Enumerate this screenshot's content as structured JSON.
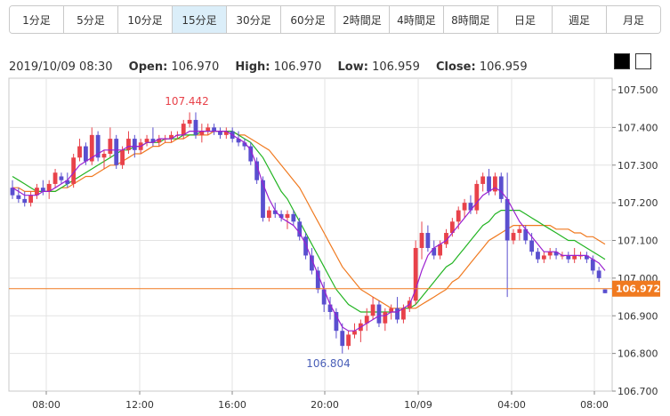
{
  "tabs": [
    {
      "label": "1分足"
    },
    {
      "label": "5分足"
    },
    {
      "label": "10分足"
    },
    {
      "label": "15分足",
      "active": true
    },
    {
      "label": "30分足"
    },
    {
      "label": "60分足"
    },
    {
      "label": "2時間足"
    },
    {
      "label": "4時間足"
    },
    {
      "label": "8時間足"
    },
    {
      "label": "日足"
    },
    {
      "label": "週足"
    },
    {
      "label": "月足"
    }
  ],
  "ohlc": {
    "datetime": "2019/10/09 08:30",
    "open_label": "Open:",
    "open": "106.970",
    "high_label": "High:",
    "high": "106.970",
    "low_label": "Low:",
    "low": "106.959",
    "close_label": "Close:",
    "close": "106.959"
  },
  "chart_data": {
    "type": "candlestick",
    "y_ticks": [
      "107.500",
      "107.400",
      "107.300",
      "107.200",
      "107.100",
      "107.000",
      "106.900",
      "106.800",
      "106.700"
    ],
    "ylim": [
      106.7,
      107.5
    ],
    "x_ticks": [
      "08:00",
      "12:00",
      "16:00",
      "20:00",
      "10/09",
      "04:00",
      "08:00"
    ],
    "current_price": "106.972",
    "annotations": {
      "high": "107.442",
      "low": "106.804"
    },
    "colors": {
      "up": "#e8424a",
      "down": "#5a4fcf",
      "ma_short": "#9a1fd0",
      "ma_mid": "#22b422",
      "ma_long": "#f07a20",
      "price_line": "#f07a20"
    },
    "ohlc": [
      [
        107.24,
        107.26,
        107.21,
        107.22
      ],
      [
        107.22,
        107.24,
        107.2,
        107.21
      ],
      [
        107.21,
        107.23,
        107.19,
        107.2
      ],
      [
        107.2,
        107.23,
        107.19,
        107.22
      ],
      [
        107.22,
        107.25,
        107.21,
        107.24
      ],
      [
        107.24,
        107.26,
        107.22,
        107.23
      ],
      [
        107.23,
        107.26,
        107.21,
        107.25
      ],
      [
        107.25,
        107.29,
        107.24,
        107.28
      ],
      [
        107.27,
        107.28,
        107.25,
        107.26
      ],
      [
        107.26,
        107.28,
        107.24,
        107.25
      ],
      [
        107.25,
        107.33,
        107.24,
        107.32
      ],
      [
        107.32,
        107.37,
        107.31,
        107.35
      ],
      [
        107.35,
        107.36,
        107.3,
        107.31
      ],
      [
        107.31,
        107.4,
        107.3,
        107.38
      ],
      [
        107.38,
        107.39,
        107.31,
        107.32
      ],
      [
        107.32,
        107.34,
        107.29,
        107.33
      ],
      [
        107.33,
        107.4,
        107.32,
        107.37
      ],
      [
        107.37,
        107.38,
        107.29,
        107.3
      ],
      [
        107.3,
        107.35,
        107.29,
        107.34
      ],
      [
        107.34,
        107.39,
        107.33,
        107.37
      ],
      [
        107.37,
        107.38,
        107.32,
        107.34
      ],
      [
        107.34,
        107.37,
        107.33,
        107.36
      ],
      [
        107.36,
        107.38,
        107.35,
        107.37
      ],
      [
        107.37,
        107.4,
        107.35,
        107.36
      ],
      [
        107.36,
        107.38,
        107.35,
        107.37
      ],
      [
        107.37,
        107.38,
        107.36,
        107.37
      ],
      [
        107.37,
        107.39,
        107.36,
        107.38
      ],
      [
        107.38,
        107.39,
        107.37,
        107.38
      ],
      [
        107.38,
        107.42,
        107.37,
        107.41
      ],
      [
        107.41,
        107.44,
        107.4,
        107.42
      ],
      [
        107.42,
        107.44,
        107.37,
        107.38
      ],
      [
        107.38,
        107.41,
        107.36,
        107.39
      ],
      [
        107.39,
        107.41,
        107.38,
        107.4
      ],
      [
        107.4,
        107.41,
        107.38,
        107.39
      ],
      [
        107.39,
        107.4,
        107.37,
        107.38
      ],
      [
        107.38,
        107.4,
        107.37,
        107.39
      ],
      [
        107.39,
        107.4,
        107.36,
        107.37
      ],
      [
        107.37,
        107.39,
        107.35,
        107.36
      ],
      [
        107.36,
        107.37,
        107.34,
        107.35
      ],
      [
        107.35,
        107.36,
        107.3,
        107.31
      ],
      [
        107.31,
        107.32,
        107.25,
        107.26
      ],
      [
        107.26,
        107.27,
        107.15,
        107.16
      ],
      [
        107.16,
        107.19,
        107.15,
        107.18
      ],
      [
        107.18,
        107.2,
        107.16,
        107.17
      ],
      [
        107.17,
        107.18,
        107.15,
        107.16
      ],
      [
        107.16,
        107.18,
        107.13,
        107.17
      ],
      [
        107.17,
        107.18,
        107.14,
        107.15
      ],
      [
        107.15,
        107.16,
        107.1,
        107.11
      ],
      [
        107.11,
        107.12,
        107.05,
        107.06
      ],
      [
        107.06,
        107.08,
        107.01,
        107.02
      ],
      [
        107.02,
        107.03,
        106.96,
        106.97
      ],
      [
        106.97,
        106.99,
        106.91,
        106.93
      ],
      [
        106.93,
        106.95,
        106.89,
        106.91
      ],
      [
        106.91,
        106.92,
        106.84,
        106.86
      ],
      [
        106.86,
        106.88,
        106.8,
        106.82
      ],
      [
        106.82,
        106.86,
        106.81,
        106.85
      ],
      [
        106.85,
        106.88,
        106.84,
        106.86
      ],
      [
        106.86,
        106.89,
        106.83,
        106.88
      ],
      [
        106.88,
        106.92,
        106.86,
        106.9
      ],
      [
        106.9,
        106.95,
        106.89,
        106.93
      ],
      [
        106.93,
        106.94,
        106.87,
        106.88
      ],
      [
        106.88,
        106.92,
        106.86,
        106.91
      ],
      [
        106.91,
        106.93,
        106.89,
        106.92
      ],
      [
        106.92,
        106.95,
        106.88,
        106.89
      ],
      [
        106.89,
        106.93,
        106.88,
        106.92
      ],
      [
        106.92,
        106.95,
        106.91,
        106.94
      ],
      [
        106.94,
        107.1,
        106.93,
        107.08
      ],
      [
        107.08,
        107.15,
        107.05,
        107.12
      ],
      [
        107.12,
        107.14,
        107.07,
        107.08
      ],
      [
        107.08,
        107.1,
        107.05,
        107.06
      ],
      [
        107.06,
        107.1,
        107.05,
        107.09
      ],
      [
        107.09,
        107.13,
        107.08,
        107.12
      ],
      [
        107.12,
        107.16,
        107.11,
        107.15
      ],
      [
        107.15,
        107.19,
        107.13,
        107.18
      ],
      [
        107.18,
        107.21,
        107.16,
        107.2
      ],
      [
        107.2,
        107.22,
        107.17,
        107.18
      ],
      [
        107.18,
        107.26,
        107.17,
        107.25
      ],
      [
        107.25,
        107.28,
        107.23,
        107.27
      ],
      [
        107.27,
        107.29,
        107.22,
        107.23
      ],
      [
        107.23,
        107.28,
        107.22,
        107.27
      ],
      [
        107.27,
        107.28,
        107.2,
        107.21
      ],
      [
        107.21,
        107.28,
        106.95,
        107.1
      ],
      [
        107.1,
        107.13,
        107.09,
        107.12
      ],
      [
        107.12,
        107.14,
        107.1,
        107.13
      ],
      [
        107.13,
        107.14,
        107.09,
        107.1
      ],
      [
        107.1,
        107.12,
        107.06,
        107.07
      ],
      [
        107.07,
        107.08,
        107.04,
        107.05
      ],
      [
        107.05,
        107.07,
        107.04,
        107.06
      ],
      [
        107.06,
        107.08,
        107.05,
        107.07
      ],
      [
        107.07,
        107.08,
        107.05,
        107.06
      ],
      [
        107.06,
        107.07,
        107.05,
        107.06
      ],
      [
        107.06,
        107.07,
        107.04,
        107.05
      ],
      [
        107.05,
        107.08,
        107.04,
        107.06
      ],
      [
        107.06,
        107.07,
        107.05,
        107.06
      ],
      [
        107.06,
        107.07,
        107.04,
        107.05
      ],
      [
        107.05,
        107.06,
        107.01,
        107.02
      ],
      [
        107.02,
        107.03,
        106.99,
        107.0
      ],
      [
        106.97,
        106.97,
        106.96,
        106.96
      ]
    ],
    "ma_short": [
      107.24,
      107.23,
      107.22,
      107.22,
      107.22,
      107.23,
      107.23,
      107.24,
      107.25,
      107.26,
      107.28,
      107.3,
      107.31,
      107.32,
      107.33,
      107.34,
      107.34,
      107.34,
      107.34,
      107.35,
      107.35,
      107.35,
      107.36,
      107.36,
      107.37,
      107.37,
      107.37,
      107.38,
      107.38,
      107.39,
      107.39,
      107.39,
      107.39,
      107.39,
      107.39,
      107.39,
      107.38,
      107.37,
      107.36,
      107.34,
      107.3,
      107.25,
      107.21,
      107.18,
      107.16,
      107.15,
      107.14,
      107.12,
      107.09,
      107.05,
      107.01,
      106.97,
      106.93,
      106.9,
      106.87,
      106.86,
      106.86,
      106.87,
      106.88,
      106.89,
      106.9,
      106.9,
      106.91,
      106.91,
      106.92,
      106.93,
      106.97,
      107.02,
      107.06,
      107.08,
      107.09,
      107.1,
      107.12,
      107.14,
      107.16,
      107.18,
      107.2,
      107.22,
      107.23,
      107.24,
      107.23,
      107.21,
      107.18,
      107.15,
      107.13,
      107.11,
      107.09,
      107.07,
      107.07,
      107.07,
      107.06,
      107.06,
      107.06,
      107.06,
      107.06,
      107.05,
      107.04,
      107.02
    ],
    "ma_mid": [
      107.27,
      107.26,
      107.25,
      107.24,
      107.23,
      107.23,
      107.23,
      107.23,
      107.24,
      107.25,
      107.26,
      107.27,
      107.28,
      107.29,
      107.3,
      107.31,
      107.32,
      107.33,
      107.34,
      107.34,
      107.35,
      107.35,
      107.36,
      107.36,
      107.36,
      107.37,
      107.37,
      107.37,
      107.38,
      107.38,
      107.38,
      107.39,
      107.39,
      107.39,
      107.39,
      107.39,
      107.39,
      107.38,
      107.37,
      107.36,
      107.34,
      107.32,
      107.29,
      107.26,
      107.23,
      107.21,
      107.18,
      107.15,
      107.12,
      107.09,
      107.06,
      107.03,
      107.0,
      106.97,
      106.95,
      106.93,
      106.92,
      106.91,
      106.91,
      106.91,
      106.91,
      106.91,
      106.91,
      106.91,
      106.92,
      106.92,
      106.93,
      106.95,
      106.97,
      106.99,
      107.01,
      107.03,
      107.04,
      107.06,
      107.08,
      107.1,
      107.12,
      107.14,
      107.15,
      107.17,
      107.18,
      107.18,
      107.18,
      107.18,
      107.17,
      107.16,
      107.15,
      107.14,
      107.13,
      107.12,
      107.11,
      107.1,
      107.1,
      107.09,
      107.08,
      107.07,
      107.06,
      107.05
    ],
    "ma_long": [
      107.24,
      107.24,
      107.23,
      107.23,
      107.23,
      107.23,
      107.23,
      107.23,
      107.24,
      107.24,
      107.25,
      107.26,
      107.27,
      107.27,
      107.28,
      107.29,
      107.3,
      107.3,
      107.31,
      107.32,
      107.33,
      107.33,
      107.34,
      107.35,
      107.35,
      107.36,
      107.36,
      107.37,
      107.37,
      107.38,
      107.38,
      107.38,
      107.38,
      107.39,
      107.39,
      107.39,
      107.39,
      107.38,
      107.38,
      107.37,
      107.36,
      107.35,
      107.34,
      107.32,
      107.3,
      107.28,
      107.26,
      107.24,
      107.21,
      107.18,
      107.15,
      107.12,
      107.09,
      107.06,
      107.03,
      107.01,
      106.99,
      106.97,
      106.96,
      106.95,
      106.94,
      106.93,
      106.92,
      106.92,
      106.92,
      106.92,
      106.92,
      106.93,
      106.94,
      106.95,
      106.96,
      106.97,
      106.99,
      107.0,
      107.02,
      107.04,
      107.06,
      107.08,
      107.1,
      107.11,
      107.12,
      107.13,
      107.14,
      107.14,
      107.14,
      107.14,
      107.14,
      107.14,
      107.14,
      107.13,
      107.13,
      107.13,
      107.12,
      107.12,
      107.11,
      107.11,
      107.1,
      107.09
    ]
  }
}
